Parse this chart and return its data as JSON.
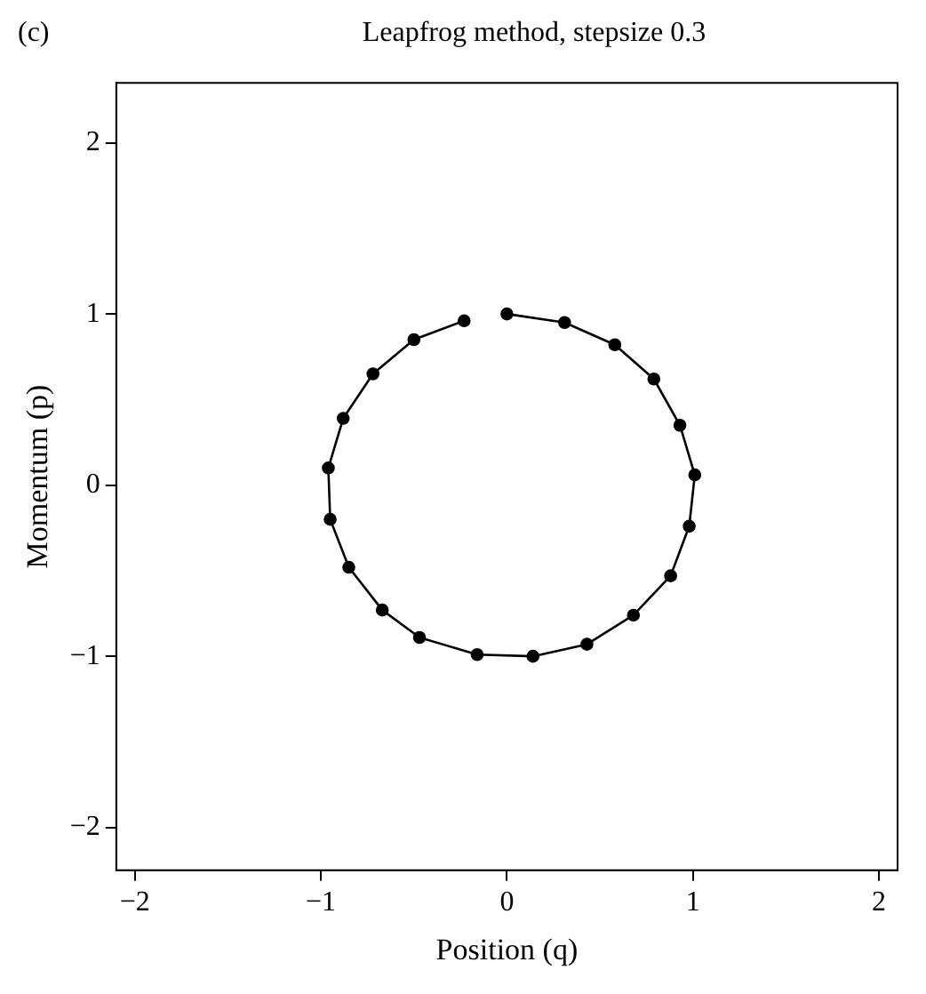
{
  "chart_data": {
    "type": "line",
    "title": "Leapfrog method, stepsize 0.3",
    "xlabel": "Position (q)",
    "ylabel": "Momentum (p)",
    "annotations": [
      "(c)"
    ],
    "x": [
      0,
      0.31,
      0.58,
      0.79,
      0.93,
      1.01,
      0.98,
      0.88,
      0.68,
      0.43,
      0.14,
      -0.16,
      -0.47,
      -0.67,
      -0.85,
      -0.95,
      -0.96,
      -0.88,
      -0.72,
      -0.5,
      -0.23
    ],
    "values": [
      1,
      0.95,
      0.82,
      0.62,
      0.35,
      0.06,
      -0.24,
      -0.53,
      -0.76,
      -0.93,
      -1,
      -0.99,
      -0.89,
      -0.73,
      -0.48,
      -0.2,
      0.1,
      0.39,
      0.65,
      0.85,
      0.96
    ],
    "color": "#000000",
    "marker": "circle",
    "line_style": "solid",
    "grid": false,
    "legend": false,
    "xlim": [
      -2.1,
      2.1
    ],
    "ylim": [
      -2.25,
      2.35
    ],
    "xticks": [
      -2,
      -1,
      0,
      1,
      2
    ],
    "yticks": [
      -2,
      -1,
      0,
      1,
      2
    ]
  }
}
